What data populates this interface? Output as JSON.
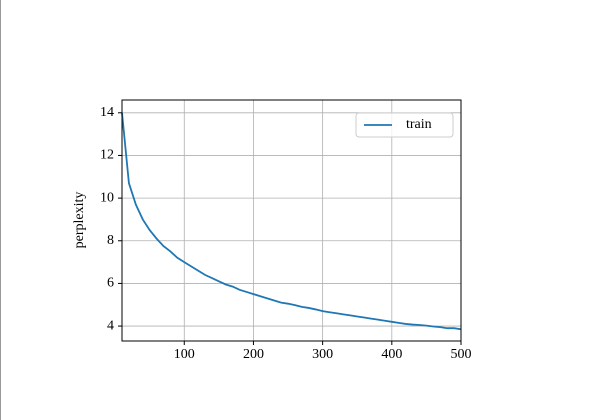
{
  "chart_data": {
    "type": "line",
    "ylabel": "perplexity",
    "x": [
      10,
      20,
      30,
      40,
      50,
      60,
      70,
      80,
      90,
      100,
      110,
      120,
      130,
      140,
      150,
      160,
      170,
      180,
      190,
      200,
      210,
      220,
      230,
      240,
      250,
      260,
      270,
      280,
      290,
      300,
      310,
      320,
      330,
      340,
      350,
      360,
      370,
      380,
      390,
      400,
      410,
      420,
      430,
      440,
      450,
      460,
      470,
      480,
      490,
      500
    ],
    "series": [
      {
        "name": "train",
        "color": "#1f77b4",
        "values": [
          14,
          10.7,
          9.7,
          9.0,
          8.5,
          8.1,
          7.75,
          7.5,
          7.2,
          7.0,
          6.8,
          6.6,
          6.4,
          6.25,
          6.1,
          5.95,
          5.85,
          5.7,
          5.6,
          5.5,
          5.4,
          5.3,
          5.2,
          5.1,
          5.05,
          4.98,
          4.9,
          4.85,
          4.78,
          4.7,
          4.65,
          4.6,
          4.55,
          4.5,
          4.45,
          4.4,
          4.35,
          4.3,
          4.25,
          4.2,
          4.15,
          4.1,
          4.07,
          4.05,
          4.02,
          3.98,
          3.95,
          3.9,
          3.9,
          3.85
        ]
      }
    ],
    "xlim": [
      10,
      500
    ],
    "ylim": [
      3.3,
      14.6
    ],
    "xticks": [
      100,
      200,
      300,
      400,
      500
    ],
    "yticks": [
      4,
      6,
      8,
      10,
      12,
      14
    ],
    "grid": true,
    "legend": "upper right"
  }
}
